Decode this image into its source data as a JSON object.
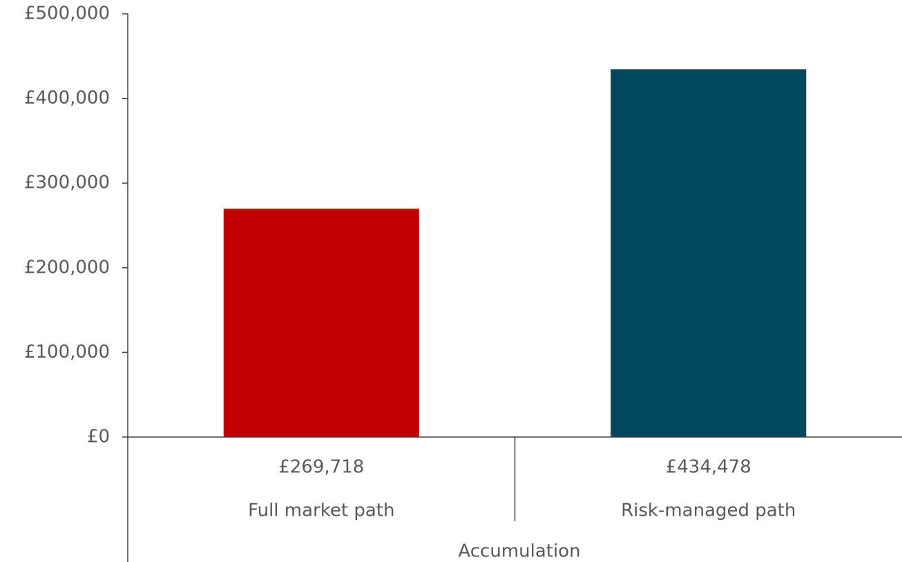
{
  "chart_data": {
    "type": "bar",
    "categories": [
      "Full market path",
      "Risk-managed path"
    ],
    "values": [
      269718,
      434478
    ],
    "value_labels": [
      "£269,718",
      "£434,478"
    ],
    "colors": [
      "#c00000",
      "#00485e"
    ],
    "group_label": "Accumulation",
    "ylim": [
      0,
      500000
    ],
    "yticks": [
      {
        "value": 0,
        "label": "£0"
      },
      {
        "value": 100000,
        "label": "£100,000"
      },
      {
        "value": 200000,
        "label": "£200,000"
      },
      {
        "value": 300000,
        "label": "£300,000"
      },
      {
        "value": 400000,
        "label": "£400,000"
      },
      {
        "value": 500000,
        "label": "£500,000"
      }
    ],
    "grid": false
  }
}
